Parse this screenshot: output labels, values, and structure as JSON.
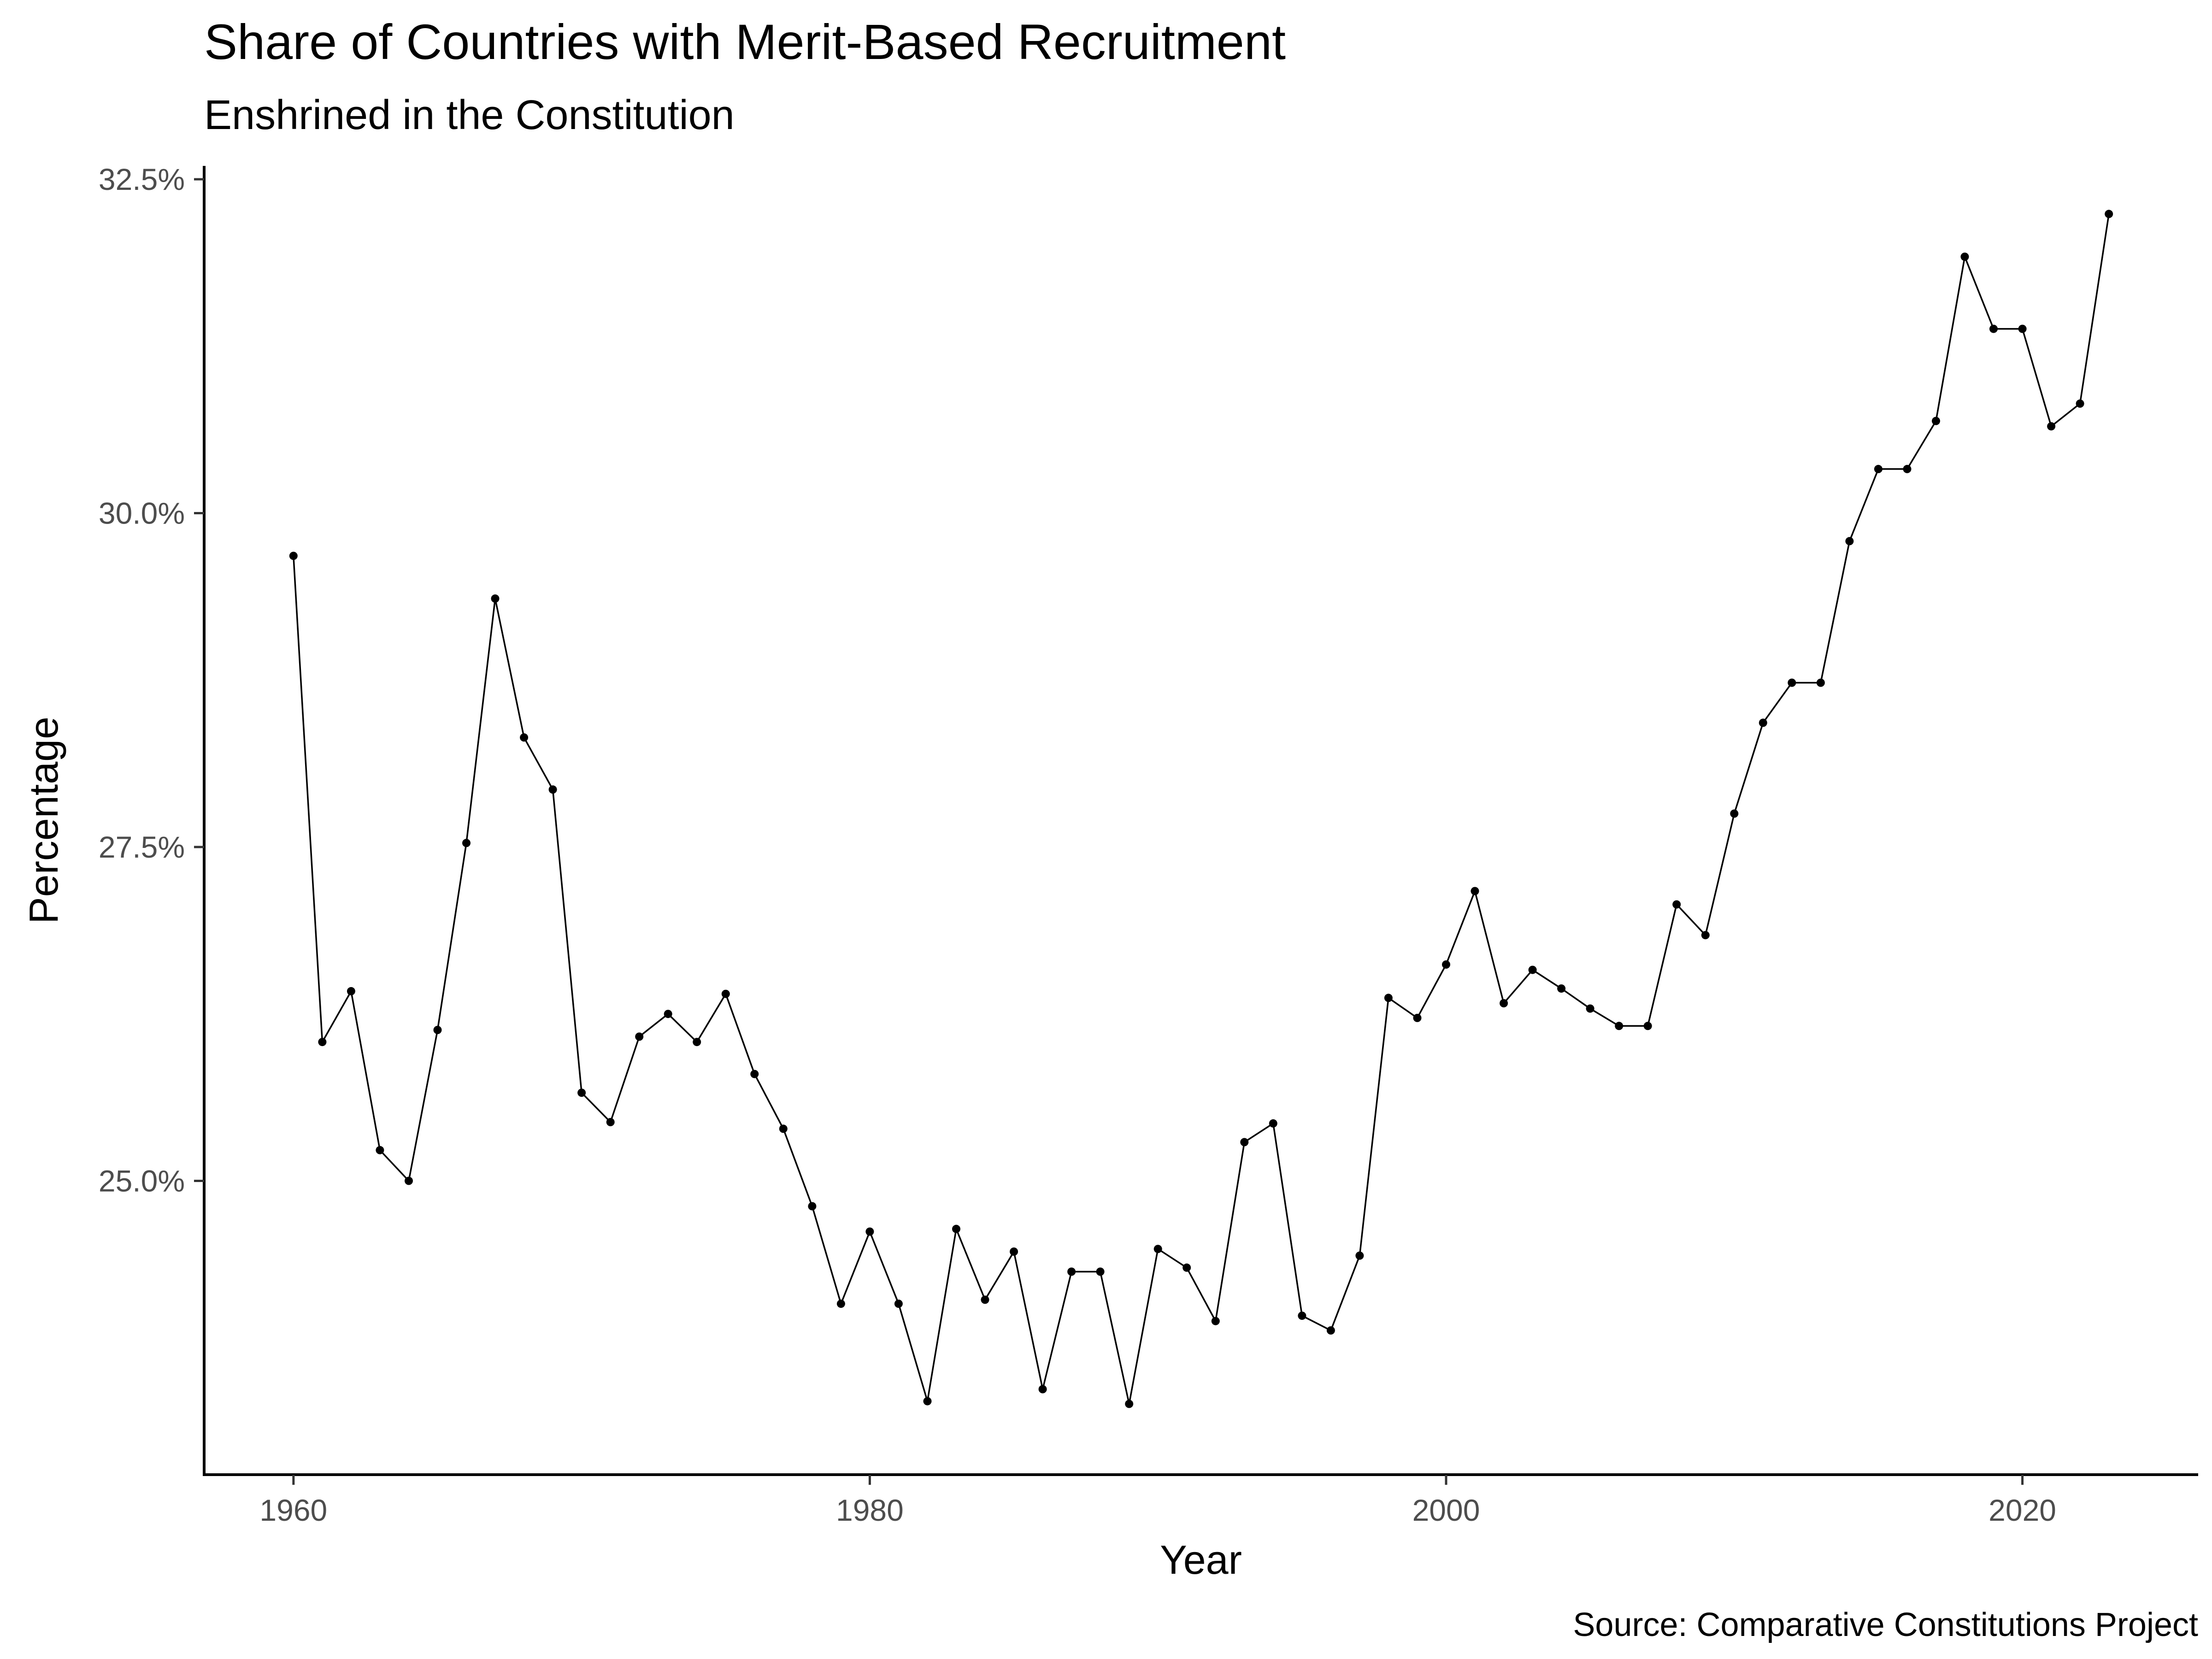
{
  "chart_data": {
    "type": "line",
    "title": "Share of Countries with Merit-Based Recruitment",
    "subtitle": "Enshrined in the Constitution",
    "xlabel": "Year",
    "ylabel": "Percentage",
    "caption": "Source: Comparative Constitutions Project",
    "xlim": [
      1956.9,
      2026.1
    ],
    "ylim": [
      22.8,
      32.6
    ],
    "x_ticks": [
      1960,
      1980,
      2000,
      2020
    ],
    "x_tick_labels": [
      "1960",
      "1980",
      "2000",
      "2020"
    ],
    "y_ticks": [
      25.0,
      27.5,
      30.0,
      32.5
    ],
    "y_tick_labels": [
      "25.0%",
      "27.5%",
      "30.0%",
      "32.5%"
    ],
    "grid": false,
    "legend": "none",
    "line_color": "#000000",
    "x": [
      1960,
      1961,
      1962,
      1963,
      1964,
      1965,
      1966,
      1967,
      1968,
      1969,
      1970,
      1971,
      1972,
      1973,
      1974,
      1975,
      1976,
      1977,
      1978,
      1979,
      1980,
      1981,
      1982,
      1983,
      1984,
      1985,
      1986,
      1987,
      1988,
      1989,
      1990,
      1991,
      1992,
      1993,
      1994,
      1995,
      1996,
      1997,
      1998,
      1999,
      2000,
      2001,
      2002,
      2003,
      2004,
      2005,
      2006,
      2007,
      2008,
      2009,
      2010,
      2011,
      2012,
      2013,
      2014,
      2015,
      2016,
      2017,
      2018,
      2019,
      2020,
      2021,
      2022,
      2023
    ],
    "y": [
      29.68,
      26.04,
      26.42,
      25.23,
      25.0,
      26.13,
      27.53,
      29.36,
      28.32,
      27.93,
      25.66,
      25.44,
      26.08,
      26.25,
      26.04,
      26.4,
      25.8,
      25.39,
      24.81,
      24.08,
      24.62,
      24.08,
      23.35,
      24.64,
      24.11,
      24.47,
      23.44,
      24.32,
      24.32,
      23.33,
      24.49,
      24.35,
      23.95,
      25.29,
      25.43,
      23.99,
      23.88,
      24.44,
      26.37,
      26.22,
      26.62,
      27.17,
      26.33,
      26.58,
      26.44,
      26.29,
      26.16,
      26.16,
      27.07,
      26.84,
      27.75,
      28.43,
      28.73,
      28.73,
      29.79,
      30.33,
      30.33,
      30.69,
      31.92,
      31.38,
      31.38,
      30.65,
      30.82,
      32.24
    ]
  }
}
